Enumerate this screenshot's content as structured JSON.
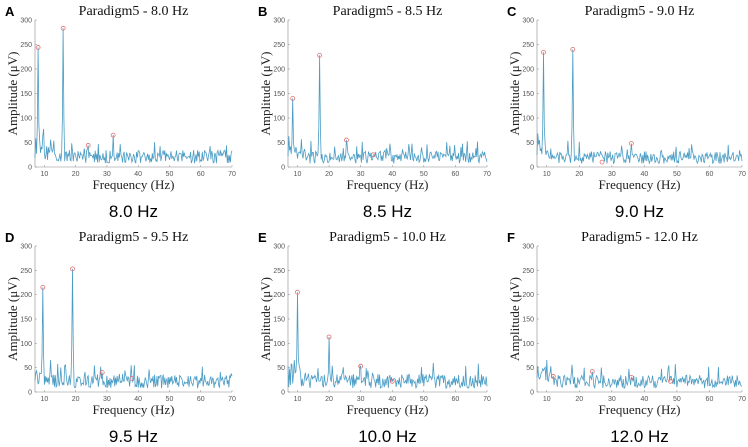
{
  "chart_data": [
    {
      "letter": "A",
      "type": "line",
      "title": "Paradigm5 - 8.0 Hz",
      "caption": "8.0 Hz",
      "xlabel": "Frequency (Hz)",
      "ylabel": "Amplitude (μV)",
      "xlim": [
        7,
        70
      ],
      "ylim": [
        0,
        300
      ],
      "xticks": [
        10,
        20,
        30,
        40,
        50,
        60,
        70
      ],
      "yticks": [
        0,
        50,
        100,
        150,
        200,
        250,
        300
      ],
      "line_color": "#4a9cc4",
      "marker_color": "#e07070",
      "seed": 11,
      "noise_level": 30,
      "peaks": [
        {
          "x": 8,
          "y": 244
        },
        {
          "x": 16,
          "y": 283
        },
        {
          "x": 24,
          "y": 44
        },
        {
          "x": 32,
          "y": 65
        }
      ]
    },
    {
      "letter": "B",
      "type": "line",
      "title": "Paradigm5 - 8.5 Hz",
      "caption": "8.5 Hz",
      "xlabel": "Frequency (Hz)",
      "ylabel": "Amplitude (μV)",
      "xlim": [
        7,
        70
      ],
      "ylim": [
        0,
        300
      ],
      "xticks": [
        10,
        20,
        30,
        40,
        50,
        60,
        70
      ],
      "yticks": [
        0,
        50,
        100,
        150,
        200,
        250,
        300
      ],
      "line_color": "#4a9cc4",
      "marker_color": "#e07070",
      "seed": 23,
      "noise_level": 28,
      "peaks": [
        {
          "x": 8.5,
          "y": 140
        },
        {
          "x": 17,
          "y": 228
        },
        {
          "x": 25.5,
          "y": 55
        },
        {
          "x": 34,
          "y": 25
        }
      ]
    },
    {
      "letter": "C",
      "type": "line",
      "title": "Paradigm5 - 9.0 Hz",
      "caption": "9.0 Hz",
      "xlabel": "Frequency (Hz)",
      "ylabel": "Amplitude (μV)",
      "xlim": [
        7,
        70
      ],
      "ylim": [
        0,
        300
      ],
      "xticks": [
        10,
        20,
        30,
        40,
        50,
        60,
        70
      ],
      "yticks": [
        0,
        50,
        100,
        150,
        200,
        250,
        300
      ],
      "line_color": "#4a9cc4",
      "marker_color": "#e07070",
      "seed": 37,
      "noise_level": 28,
      "peaks": [
        {
          "x": 9,
          "y": 234
        },
        {
          "x": 18,
          "y": 240
        },
        {
          "x": 27,
          "y": 10
        },
        {
          "x": 36,
          "y": 48
        }
      ]
    },
    {
      "letter": "D",
      "type": "line",
      "title": "Paradigm5 - 9.5 Hz",
      "caption": "9.5 Hz",
      "xlabel": "Frequency (Hz)",
      "ylabel": "Amplitude (μV)",
      "xlim": [
        7,
        70
      ],
      "ylim": [
        0,
        300
      ],
      "xticks": [
        10,
        20,
        30,
        40,
        50,
        60,
        70
      ],
      "yticks": [
        0,
        50,
        100,
        150,
        200,
        250,
        300
      ],
      "line_color": "#4a9cc4",
      "marker_color": "#e07070",
      "seed": 41,
      "noise_level": 30,
      "peaks": [
        {
          "x": 9.5,
          "y": 215
        },
        {
          "x": 19,
          "y": 253
        },
        {
          "x": 28.5,
          "y": 40
        },
        {
          "x": 38,
          "y": 28
        }
      ]
    },
    {
      "letter": "E",
      "type": "line",
      "title": "Paradigm5 - 10.0 Hz",
      "caption": "10.0 Hz",
      "xlabel": "Frequency (Hz)",
      "ylabel": "Amplitude (μV)",
      "xlim": [
        7,
        70
      ],
      "ylim": [
        0,
        300
      ],
      "xticks": [
        10,
        20,
        30,
        40,
        50,
        60,
        70
      ],
      "yticks": [
        0,
        50,
        100,
        150,
        200,
        250,
        300
      ],
      "line_color": "#4a9cc4",
      "marker_color": "#e07070",
      "seed": 53,
      "noise_level": 32,
      "peaks": [
        {
          "x": 10,
          "y": 205
        },
        {
          "x": 20,
          "y": 113
        },
        {
          "x": 30,
          "y": 53
        },
        {
          "x": 40,
          "y": 22
        }
      ]
    },
    {
      "letter": "F",
      "type": "line",
      "title": "Paradigm5 - 12.0 Hz",
      "caption": "12.0 Hz",
      "xlabel": "Frequency (Hz)",
      "ylabel": "Amplitude (μV)",
      "xlim": [
        7,
        70
      ],
      "ylim": [
        0,
        300
      ],
      "xticks": [
        10,
        20,
        30,
        40,
        50,
        60,
        70
      ],
      "yticks": [
        0,
        50,
        100,
        150,
        200,
        250,
        300
      ],
      "line_color": "#4a9cc4",
      "marker_color": "#e07070",
      "seed": 67,
      "noise_level": 30,
      "peaks": [
        {
          "x": 12,
          "y": 32
        },
        {
          "x": 24,
          "y": 42
        },
        {
          "x": 36,
          "y": 30
        },
        {
          "x": 48,
          "y": 22
        }
      ]
    }
  ]
}
